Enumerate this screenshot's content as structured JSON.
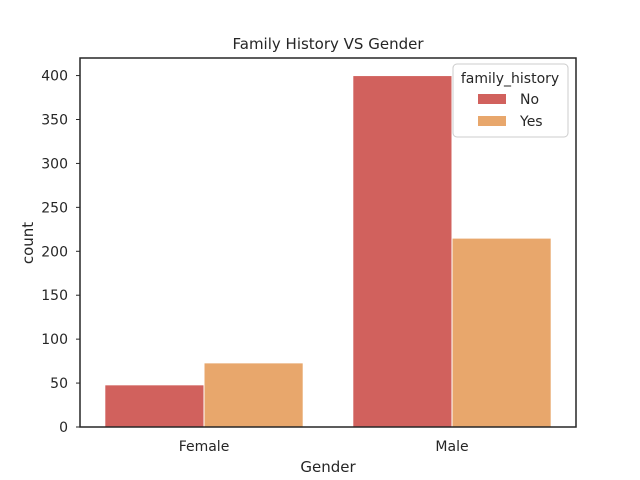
{
  "chart_data": {
    "type": "bar",
    "title": "Family History VS Gender",
    "xlabel": "Gender",
    "ylabel": "count",
    "categories": [
      "Female",
      "Male"
    ],
    "series": [
      {
        "name": "No",
        "values": [
          48,
          400
        ],
        "color": "#d1615d"
      },
      {
        "name": "Yes",
        "values": [
          73,
          215
        ],
        "color": "#e8a76c"
      }
    ],
    "ylim": [
      0,
      420
    ],
    "yticks": [
      0,
      50,
      100,
      150,
      200,
      250,
      300,
      350,
      400
    ],
    "legend": {
      "title": "family_history",
      "placement": "top-right"
    },
    "grid": false
  }
}
